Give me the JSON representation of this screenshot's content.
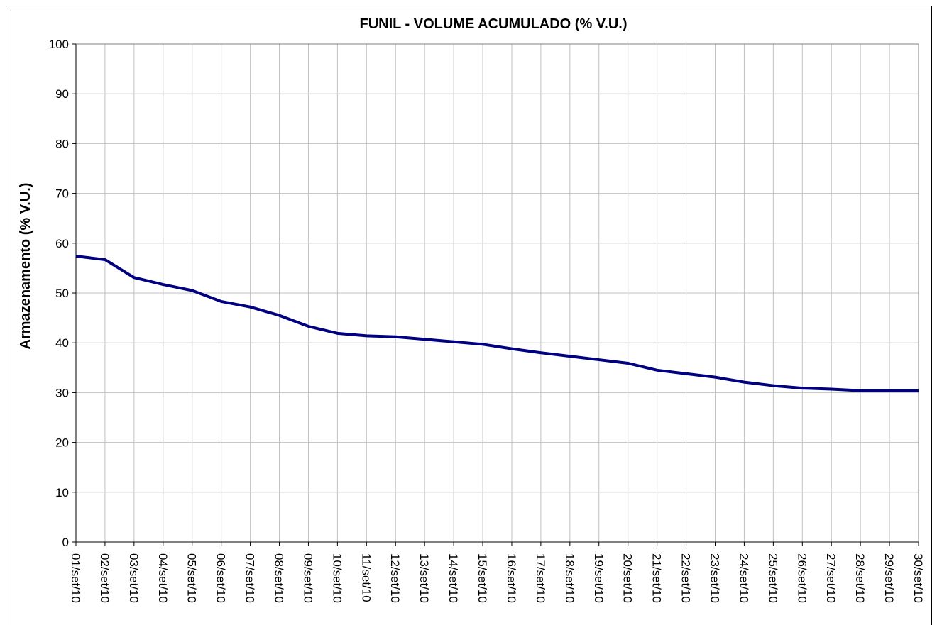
{
  "chart_data": {
    "type": "line",
    "title": "FUNIL - VOLUME ACUMULADO (% V.U.)",
    "y_label": "Armazenamento (% V.U.)",
    "categories": [
      "01/set/10",
      "02/set/10",
      "03/set/10",
      "04/set/10",
      "05/set/10",
      "06/set/10",
      "07/set/10",
      "08/set/10",
      "09/set/10",
      "10/set/10",
      "11/set/10",
      "12/set/10",
      "13/set/10",
      "14/set/10",
      "15/set/10",
      "16/set/10",
      "17/set/10",
      "18/set/10",
      "19/set/10",
      "20/set/10",
      "21/set/10",
      "22/set/10",
      "23/set/10",
      "24/set/10",
      "25/set/10",
      "26/set/10",
      "27/set/10",
      "28/set/10",
      "29/set/10",
      "30/set/10"
    ],
    "values": [
      57.4,
      56.7,
      53.1,
      51.7,
      50.5,
      48.3,
      47.2,
      45.5,
      43.3,
      41.9,
      41.4,
      41.2,
      40.7,
      40.2,
      39.7,
      38.8,
      38.0,
      37.3,
      36.6,
      35.9,
      34.5,
      33.8,
      33.1,
      32.1,
      31.4,
      30.9,
      30.7,
      30.4,
      30.4,
      30.4
    ],
    "color": "#000080",
    "ylim": [
      0,
      100
    ],
    "yticks": [
      0,
      10,
      20,
      30,
      40,
      50,
      60,
      70,
      80,
      90,
      100
    ],
    "grid": true
  }
}
